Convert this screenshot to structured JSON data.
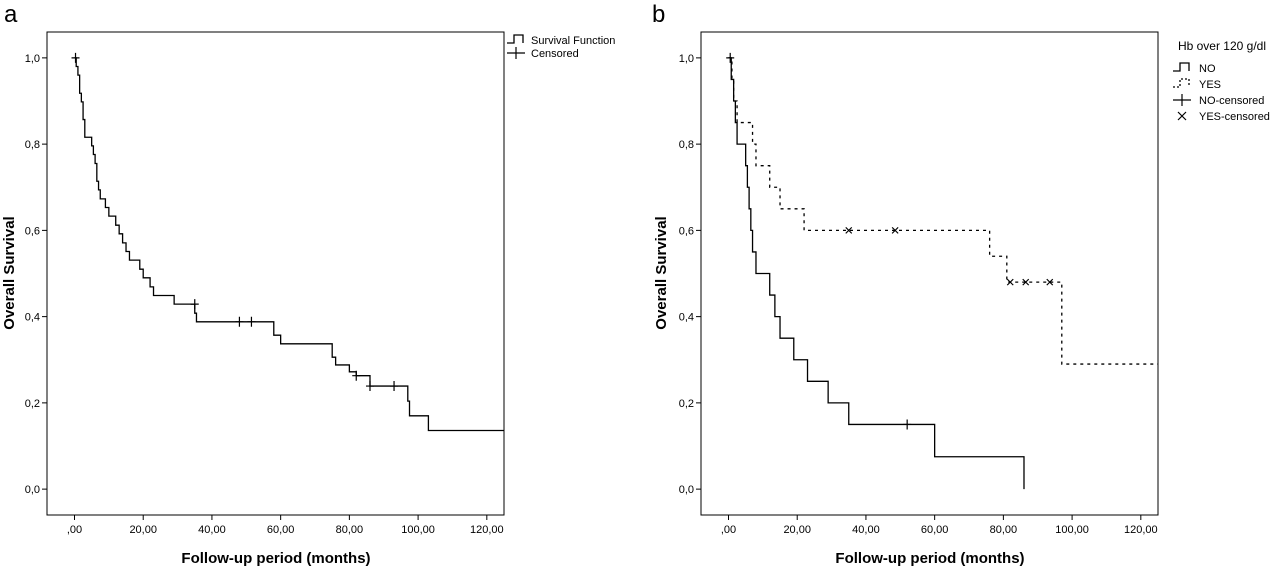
{
  "chart_data": [
    {
      "panel_label": "a",
      "type": "line",
      "step": true,
      "xlabel": "Follow-up period (months)",
      "ylabel": "Overall Survival",
      "xlim": [
        -8,
        125
      ],
      "ylim": [
        -0.06,
        1.06
      ],
      "x_ticks": [
        0,
        20,
        40,
        60,
        80,
        100,
        120
      ],
      "x_tick_labels": [
        ",00",
        "20,00",
        "40,00",
        "60,00",
        "80,00",
        "100,00",
        "120,00"
      ],
      "y_ticks": [
        0,
        0.2,
        0.4,
        0.6,
        0.8,
        1.0
      ],
      "y_tick_labels": [
        "0,0",
        "0,2",
        "0,4",
        "0,6",
        "0,8",
        "1,0"
      ],
      "legend_title": "",
      "legend": [
        {
          "label": "Survival Function",
          "symbol": "step",
          "dash": "solid"
        },
        {
          "label": "Censored",
          "symbol": "plus"
        }
      ],
      "series": [
        {
          "name": "Survival Function",
          "dash": "solid",
          "points": [
            [
              0,
              1.0
            ],
            [
              0.5,
              0.98
            ],
            [
              1,
              0.96
            ],
            [
              1.5,
              0.918
            ],
            [
              2,
              0.898
            ],
            [
              2.5,
              0.857
            ],
            [
              3,
              0.816
            ],
            [
              5,
              0.796
            ],
            [
              5.5,
              0.776
            ],
            [
              6,
              0.755
            ],
            [
              6.5,
              0.714
            ],
            [
              7,
              0.694
            ],
            [
              7.5,
              0.673
            ],
            [
              9,
              0.653
            ],
            [
              10,
              0.633
            ],
            [
              12,
              0.612
            ],
            [
              13,
              0.592
            ],
            [
              14,
              0.571
            ],
            [
              15,
              0.551
            ],
            [
              16,
              0.531
            ],
            [
              19,
              0.51
            ],
            [
              20,
              0.49
            ],
            [
              22,
              0.469
            ],
            [
              23,
              0.449
            ],
            [
              29,
              0.429
            ],
            [
              35,
              0.408
            ],
            [
              35.5,
              0.388
            ],
            [
              58,
              0.357
            ],
            [
              60,
              0.337
            ],
            [
              75,
              0.306
            ],
            [
              76,
              0.288
            ],
            [
              80,
              0.272
            ],
            [
              82,
              0.263
            ],
            [
              86,
              0.239
            ],
            [
              97,
              0.204
            ],
            [
              97.5,
              0.17
            ],
            [
              103,
              0.136
            ],
            [
              125,
              0.136
            ]
          ],
          "censored": [
            [
              0.3,
              1.0
            ],
            [
              35,
              0.429
            ],
            [
              48,
              0.388
            ],
            [
              51.5,
              0.388
            ],
            [
              82,
              0.263
            ],
            [
              86,
              0.239
            ],
            [
              93,
              0.239
            ]
          ],
          "censor_marker": "plus"
        }
      ]
    },
    {
      "panel_label": "b",
      "type": "line",
      "step": true,
      "xlabel": "Follow-up period (months)",
      "ylabel": "Overall Survival",
      "xlim": [
        -8,
        125
      ],
      "ylim": [
        -0.06,
        1.06
      ],
      "x_ticks": [
        0,
        20,
        40,
        60,
        80,
        100,
        120
      ],
      "x_tick_labels": [
        ",00",
        "20,00",
        "40,00",
        "60,00",
        "80,00",
        "100,00",
        "120,00"
      ],
      "y_ticks": [
        0,
        0.2,
        0.4,
        0.6,
        0.8,
        1.0
      ],
      "y_tick_labels": [
        "0,0",
        "0,2",
        "0,4",
        "0,6",
        "0,8",
        "1,0"
      ],
      "legend_title": "Hb over 120 g/dl",
      "legend": [
        {
          "label": "NO",
          "symbol": "step",
          "dash": "solid"
        },
        {
          "label": "YES",
          "symbol": "step",
          "dash": "dotted"
        },
        {
          "label": "NO-censored",
          "symbol": "plus"
        },
        {
          "label": "YES-censored",
          "symbol": "cross"
        }
      ],
      "series": [
        {
          "name": "NO",
          "dash": "solid",
          "points": [
            [
              0,
              1.0
            ],
            [
              0.8,
              0.95
            ],
            [
              1.5,
              0.9
            ],
            [
              2,
              0.85
            ],
            [
              2.5,
              0.8
            ],
            [
              5,
              0.75
            ],
            [
              5.5,
              0.7
            ],
            [
              6,
              0.65
            ],
            [
              6.5,
              0.6
            ],
            [
              7,
              0.55
            ],
            [
              8,
              0.5
            ],
            [
              12,
              0.45
            ],
            [
              13.5,
              0.4
            ],
            [
              15,
              0.35
            ],
            [
              19,
              0.3
            ],
            [
              23,
              0.25
            ],
            [
              29,
              0.2
            ],
            [
              35,
              0.15
            ],
            [
              60,
              0.075
            ],
            [
              86,
              0.075
            ],
            [
              86,
              0.0
            ]
          ],
          "censored": [
            [
              0.5,
              1.0
            ],
            [
              52,
              0.15
            ]
          ],
          "censor_marker": "plus"
        },
        {
          "name": "YES",
          "dash": "dotted",
          "points": [
            [
              0,
              1.0
            ],
            [
              1,
              0.95
            ],
            [
              1.5,
              0.9
            ],
            [
              2.5,
              0.85
            ],
            [
              7,
              0.8
            ],
            [
              8,
              0.75
            ],
            [
              12,
              0.7
            ],
            [
              15,
              0.65
            ],
            [
              22,
              0.6
            ],
            [
              76,
              0.54
            ],
            [
              81,
              0.48
            ],
            [
              97,
              0.29
            ],
            [
              125,
              0.29
            ]
          ],
          "censored": [
            [
              35,
              0.6
            ],
            [
              48.5,
              0.6
            ],
            [
              82,
              0.48
            ],
            [
              86.5,
              0.48
            ],
            [
              93.5,
              0.48
            ]
          ],
          "censor_marker": "cross"
        }
      ]
    }
  ]
}
